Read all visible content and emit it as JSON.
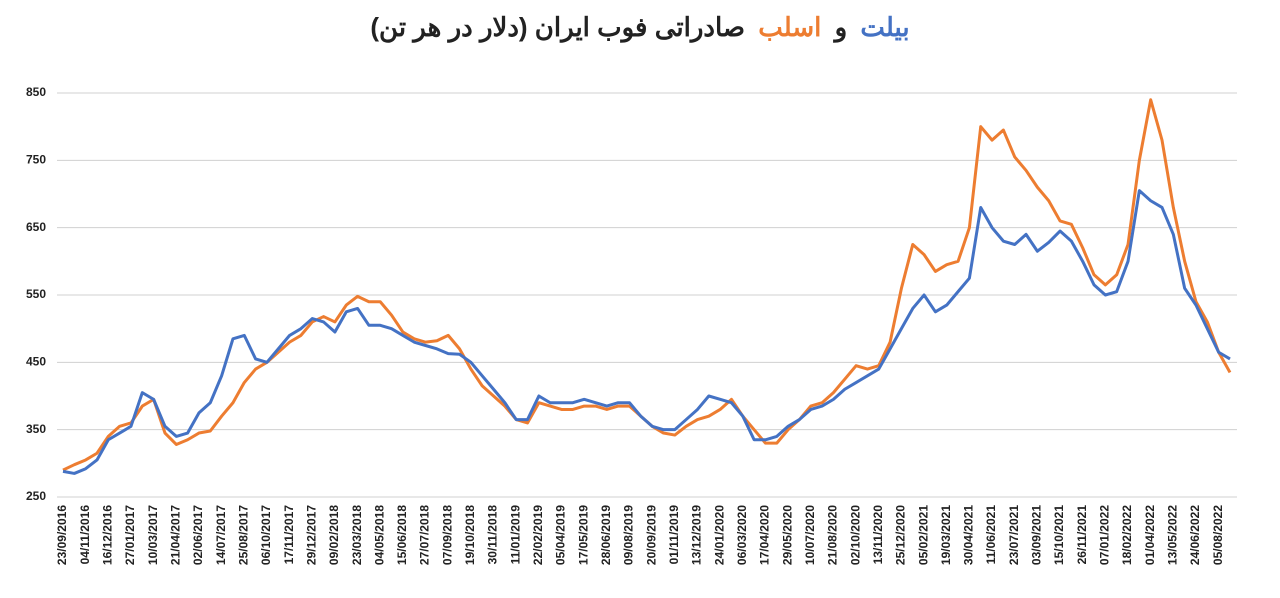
{
  "chart_data": {
    "type": "line",
    "title_series_first": "بیلت",
    "title_joiner": "و",
    "title_series_second": "اسلب",
    "title": "صادراتی فوب ایران (دلار در هر تن)",
    "categories": [
      "23/09/2016",
      null,
      "04/11/2016",
      null,
      "16/12/2016",
      null,
      "27/01/2017",
      null,
      "10/03/2017",
      null,
      "21/04/2017",
      null,
      "02/06/2017",
      null,
      "14/07/2017",
      null,
      "25/08/2017",
      null,
      "06/10/2017",
      null,
      "17/11/2017",
      null,
      "29/12/2017",
      null,
      "09/02/2018",
      null,
      "23/03/2018",
      null,
      "04/05/2018",
      null,
      "15/06/2018",
      null,
      "27/07/2018",
      null,
      "07/09/2018",
      null,
      "19/10/2018",
      null,
      "30/11/2018",
      null,
      "11/01/2019",
      null,
      "22/02/2019",
      null,
      "05/04/2019",
      null,
      "17/05/2019",
      null,
      "28/06/2019",
      null,
      "09/08/2019",
      null,
      "20/09/2019",
      null,
      "01/11/2019",
      null,
      "13/12/2019",
      null,
      "24/01/2020",
      null,
      "06/03/2020",
      null,
      "17/04/2020",
      null,
      "29/05/2020",
      null,
      "10/07/2020",
      null,
      "21/08/2020",
      null,
      "02/10/2020",
      null,
      "13/11/2020",
      null,
      "25/12/2020",
      null,
      "05/02/2021",
      null,
      "19/03/2021",
      null,
      "30/04/2021",
      null,
      "11/06/2021",
      null,
      "23/07/2021",
      null,
      "03/09/2021",
      null,
      "15/10/2021",
      null,
      "26/11/2021",
      null,
      "07/01/2022",
      null,
      "18/02/2022",
      null,
      "01/04/2022",
      null,
      "13/05/2022",
      null,
      "24/06/2022",
      null,
      "05/08/2022",
      null
    ],
    "series": [
      {
        "name": "بیلت",
        "color": "#4472c4",
        "values": [
          288,
          285,
          292,
          305,
          335,
          345,
          355,
          405,
          395,
          355,
          340,
          345,
          375,
          390,
          430,
          485,
          490,
          455,
          450,
          470,
          490,
          500,
          515,
          510,
          495,
          525,
          530,
          505,
          505,
          500,
          490,
          480,
          475,
          470,
          463,
          462,
          450,
          430,
          410,
          390,
          365,
          365,
          400,
          390,
          390,
          390,
          395,
          390,
          385,
          390,
          390,
          370,
          355,
          350,
          350,
          365,
          380,
          400,
          395,
          390,
          370,
          335,
          335,
          340,
          355,
          365,
          380,
          385,
          395,
          410,
          420,
          430,
          440,
          470,
          500,
          530,
          550,
          525,
          535,
          555,
          575,
          680,
          650,
          630,
          625,
          640,
          615,
          628,
          645,
          630,
          600,
          565,
          550,
          555,
          600,
          705,
          690,
          680,
          640,
          560,
          535,
          500,
          465,
          455
        ]
      },
      {
        "name": "اسلب",
        "color": "#ed7d31",
        "values": [
          290,
          298,
          305,
          315,
          340,
          355,
          360,
          385,
          395,
          345,
          328,
          335,
          345,
          348,
          370,
          390,
          420,
          440,
          450,
          465,
          480,
          490,
          510,
          518,
          510,
          535,
          548,
          540,
          540,
          520,
          495,
          485,
          480,
          482,
          490,
          470,
          440,
          415,
          400,
          385,
          365,
          360,
          390,
          385,
          380,
          380,
          385,
          385,
          380,
          385,
          385,
          370,
          355,
          345,
          342,
          355,
          365,
          370,
          380,
          395,
          370,
          350,
          330,
          330,
          350,
          365,
          385,
          390,
          405,
          425,
          445,
          440,
          445,
          480,
          560,
          625,
          610,
          585,
          595,
          600,
          650,
          800,
          780,
          795,
          755,
          735,
          710,
          690,
          660,
          655,
          620,
          580,
          565,
          580,
          625,
          750,
          840,
          780,
          680,
          600,
          540,
          510,
          465,
          435
        ]
      }
    ],
    "ylim": [
      250,
      850
    ],
    "yticks": [
      250,
      350,
      450,
      550,
      650,
      750,
      850
    ],
    "grid": true
  }
}
